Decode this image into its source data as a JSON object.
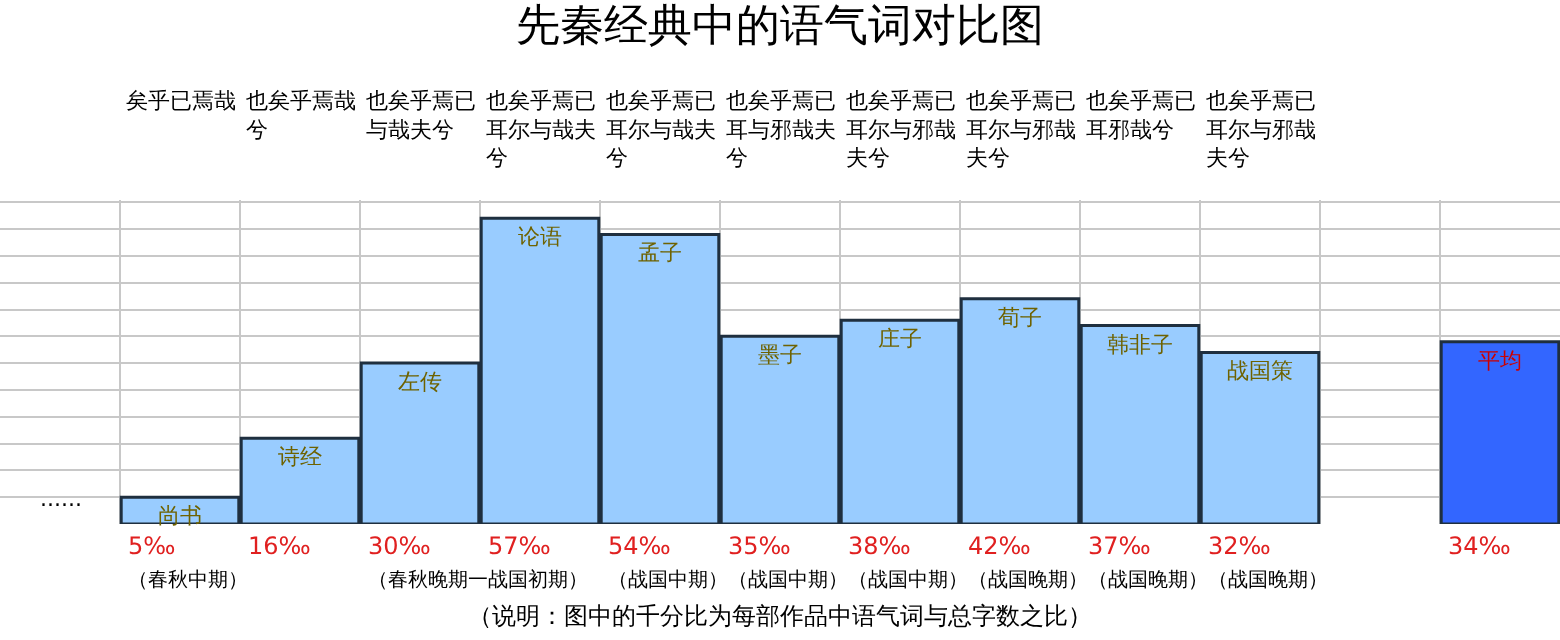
{
  "chart_data": {
    "type": "bar",
    "title": "先秦经典中的语气词对比图",
    "categories": [
      "尚书",
      "诗经",
      "左传",
      "论语",
      "孟子",
      "墨子",
      "庄子",
      "荀子",
      "韩非子",
      "战国策",
      null,
      "平均"
    ],
    "values": [
      5,
      16,
      30,
      57,
      54,
      35,
      38,
      42,
      37,
      32,
      null,
      34
    ],
    "colors": [
      "#99ccff",
      "#99ccff",
      "#99ccff",
      "#99ccff",
      "#99ccff",
      "#99ccff",
      "#99ccff",
      "#99ccff",
      "#99ccff",
      "#99ccff",
      "#99ccff",
      "#3366ff"
    ],
    "value_labels": [
      "5‰",
      "16‰",
      "30‰",
      "57‰",
      "54‰",
      "35‰",
      "38‰",
      "42‰",
      "37‰",
      "32‰",
      null,
      "34‰"
    ],
    "grid": true,
    "annotations": [
      "矣乎已焉哉",
      "也矣乎焉哉兮",
      "也矣乎焉已与哉夫兮",
      "也矣乎焉已耳尔与哉夫兮",
      "也矣乎焉已耳尔与哉夫兮",
      "也矣乎焉已耳与邪哉夫兮",
      "也矣乎焉已耳尔与邪哉夫兮",
      "也矣乎焉已耳尔与邪哉夫兮",
      "也矣乎焉已耳邪哉兮",
      "也矣乎焉已耳尔与邪哉夫兮",
      "（春秋中期）",
      "（春秋晚期一战国初期）",
      "（战国中期）",
      "（战国中期）",
      "（战国中期）",
      "（战国晚期）",
      "（战国晚期）",
      "（战国晚期）",
      "......",
      "（说明：图中的千分比为每部作品中语气词与总字数之比）"
    ]
  }
}
